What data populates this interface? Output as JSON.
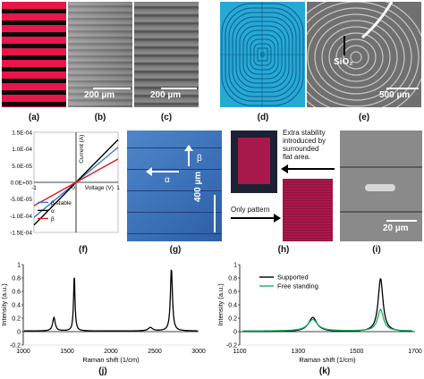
{
  "panel_labels": {
    "a": "(a)",
    "b": "(b)",
    "c": "(c)",
    "d": "(d)",
    "e": "(e)",
    "f": "(f)",
    "g": "(g)",
    "h": "(h)",
    "i": "(i)",
    "j": "(j)",
    "k": "(k)"
  },
  "scale_bars": {
    "b": "200 µm",
    "c": "200 µm",
    "e": "500 µm",
    "g": "400 µm",
    "i": "20 µm"
  },
  "annotations": {
    "e_sio2": "SiO₂",
    "g_beta": "β",
    "g_alpha": "α",
    "h_extra_line1": "Extra stability",
    "h_extra_line2": "introduced by",
    "h_extra_line3": "surrounded",
    "h_extra_line4": "flat area.",
    "h_only": "Only pattern"
  },
  "colors": {
    "stripe_red": "#e8164a",
    "stripe_black": "#0a0a0a",
    "cyan": "#27a9d6",
    "line_blue": "#3a78d8",
    "line_black": "#000000",
    "line_red": "#e01a1a",
    "line_green": "#18b060",
    "maroon": "#a8184a",
    "navy": "#1c2233"
  },
  "chart_data": [
    {
      "id": "f",
      "type": "line",
      "xlabel": "Voltage (V)",
      "ylabel": "Current (A)",
      "xlim": [
        -1,
        1
      ],
      "ylim": [
        -0.00015,
        0.00015
      ],
      "x_ticks": [
        "-1",
        "0",
        "1"
      ],
      "y_ticks": [
        "1.5E-04",
        "1.0E-04",
        "5.0E-05",
        "0.0E+00",
        "-5.0E-05",
        "-1.0E-04",
        "-1.5E-04"
      ],
      "x_tick_values": [
        -1,
        0,
        1
      ],
      "y_tick_values": [
        0.00015,
        0.0001,
        5e-05,
        0,
        -5e-05,
        -0.0001,
        -0.00015
      ],
      "series": [
        {
          "name": "β stable",
          "color": "#3a78d8",
          "x": [
            -1,
            1
          ],
          "y": [
            -0.000105,
            0.000105
          ]
        },
        {
          "name": "α",
          "color": "#000000",
          "x": [
            -1,
            1
          ],
          "y": [
            -0.000128,
            0.000128
          ]
        },
        {
          "name": "β",
          "color": "#e01a1a",
          "x": [
            -1,
            1
          ],
          "y": [
            -7e-05,
            7e-05
          ]
        }
      ]
    },
    {
      "id": "j",
      "type": "line",
      "xlabel": "Raman shift (1/cm)",
      "ylabel": "Intensity (a.u.)",
      "xlim": [
        1000,
        3000
      ],
      "ylim": [
        -0.2,
        1
      ],
      "x_ticks": [
        "1000",
        "1500",
        "2000",
        "2500",
        "3000"
      ],
      "y_ticks": [
        "1",
        "0.8",
        "0.6",
        "0.4",
        "0.2",
        "0",
        "-0.2"
      ],
      "x_tick_values": [
        1000,
        1500,
        2000,
        2500,
        3000
      ],
      "y_tick_values": [
        1,
        0.8,
        0.6,
        0.4,
        0.2,
        0,
        -0.2
      ],
      "series": [
        {
          "color": "#000000",
          "peaks": [
            [
              1350,
              0.2,
              35
            ],
            [
              1582,
              0.83,
              20
            ],
            [
              2450,
              0.05,
              60
            ],
            [
              2690,
              0.93,
              28
            ]
          ],
          "baseline": 0.01,
          "x_range": [
            1010,
            2990
          ]
        }
      ]
    },
    {
      "id": "k",
      "type": "line",
      "xlabel": "Raman shift (1/cm)",
      "ylabel": "Intensity (a.u.)",
      "xlim": [
        1100,
        1700
      ],
      "ylim": [
        -0.2,
        1
      ],
      "x_ticks": [
        "1100",
        "1300",
        "1500",
        "1700"
      ],
      "y_ticks": [
        "1",
        "0.8",
        "0.6",
        "0.4",
        "0.2",
        "0",
        "-0.2"
      ],
      "x_tick_values": [
        1100,
        1300,
        1500,
        1700
      ],
      "y_tick_values": [
        1,
        0.8,
        0.6,
        0.4,
        0.2,
        0,
        -0.2
      ],
      "legend": "top",
      "series": [
        {
          "name": "Supported",
          "color": "#000000",
          "peaks": [
            [
              1350,
              0.21,
              35
            ],
            [
              1582,
              0.79,
              20
            ]
          ],
          "baseline": 0.0,
          "x_range": [
            1110,
            1690
          ]
        },
        {
          "name": "Free standing",
          "color": "#18b060",
          "peaks": [
            [
              1350,
              0.17,
              40
            ],
            [
              1582,
              0.32,
              24
            ]
          ],
          "baseline": 0.01,
          "x_range": [
            1110,
            1690
          ]
        }
      ]
    }
  ]
}
